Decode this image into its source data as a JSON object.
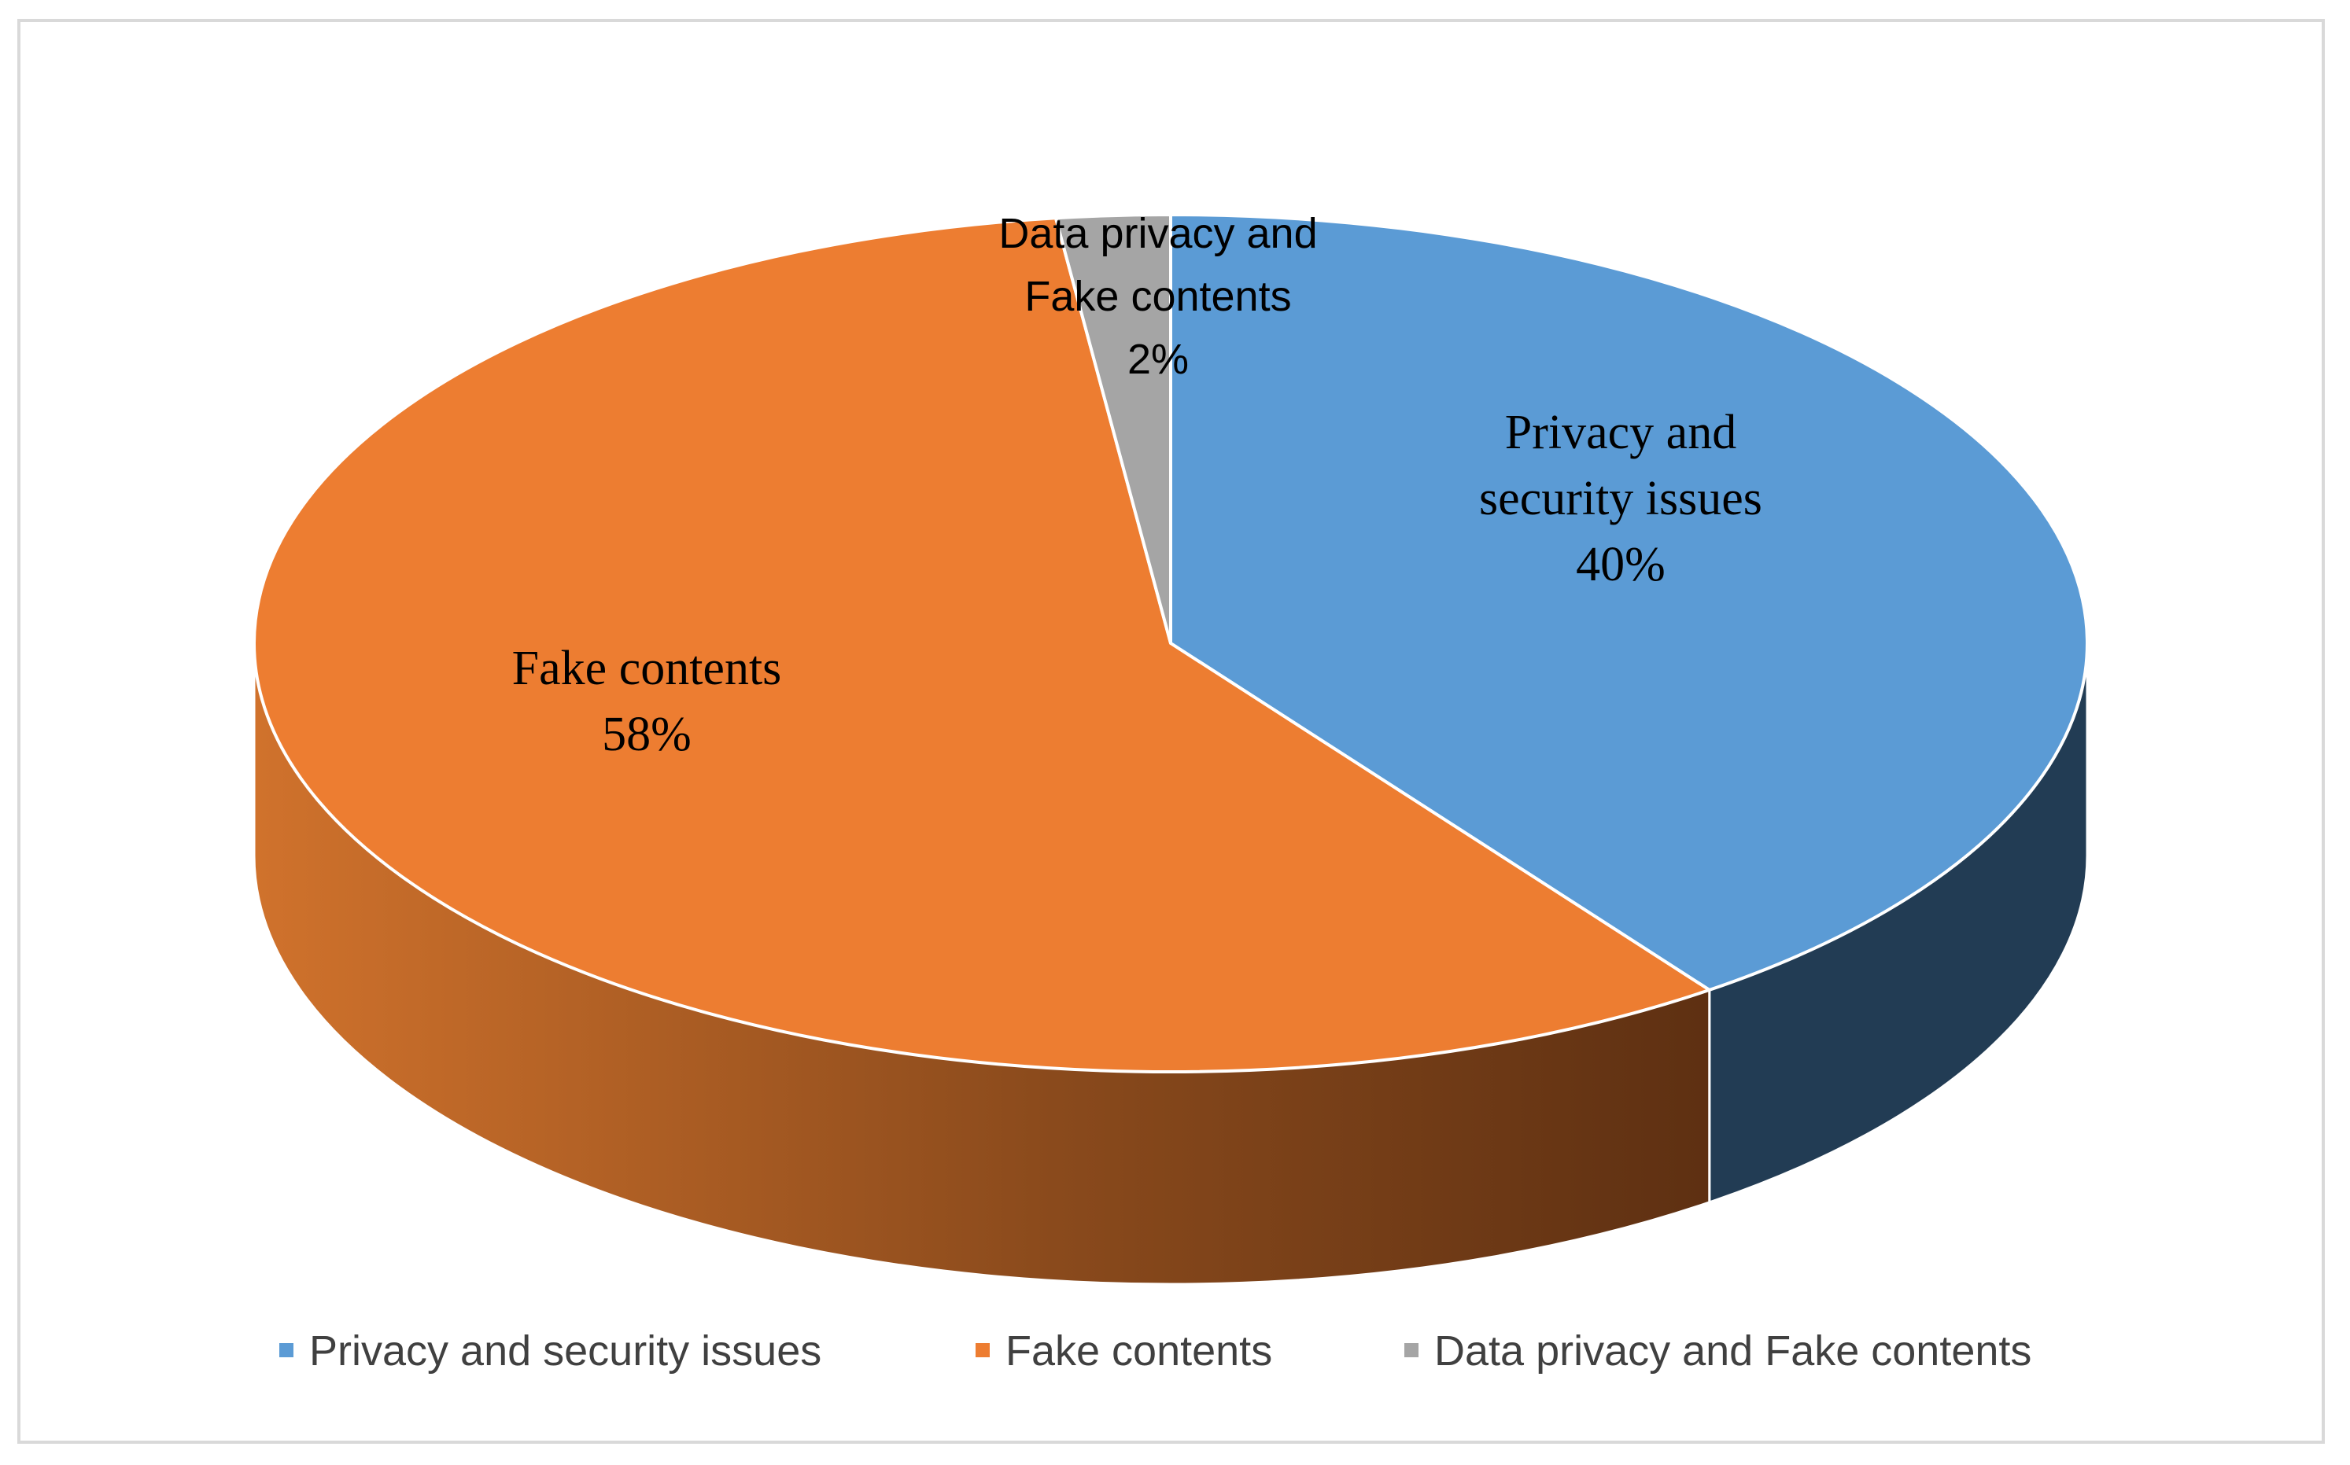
{
  "chart_data": {
    "type": "pie",
    "style": "3d",
    "title": "",
    "slices": [
      {
        "label": "Privacy and security issues",
        "value": 40,
        "data_label_lines": [
          "Privacy and",
          "security issues"
        ],
        "percent_label": "40%",
        "color": "#5b9bd5",
        "side_color": "#223c54"
      },
      {
        "label": "Fake contents",
        "value": 58,
        "data_label_lines": [
          "Fake contents"
        ],
        "percent_label": "58%",
        "color": "#ed7d31",
        "side_color": "#b85e22"
      },
      {
        "label": "Data privacy and Fake contents",
        "value": 2,
        "data_label_lines": [
          "Data privacy and",
          "Fake contents"
        ],
        "percent_label": "2%",
        "color": "#a5a5a5",
        "side_color": "#6e6e6e"
      }
    ],
    "legend": {
      "placement": "bottom",
      "entries": [
        "Privacy and security issues",
        "Fake contents",
        "Data privacy and Fake contents"
      ]
    }
  }
}
